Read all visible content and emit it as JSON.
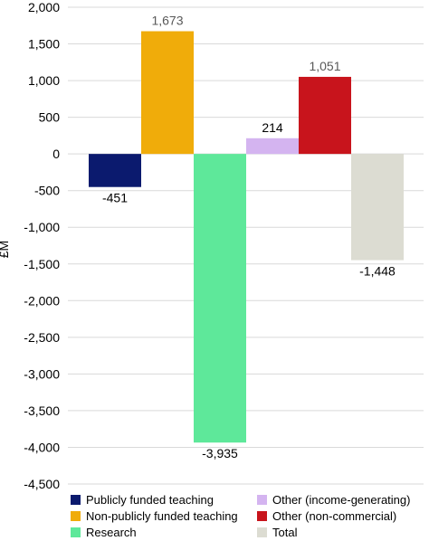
{
  "chart_data": {
    "type": "bar",
    "ylabel": "£M",
    "ylim": [
      -4500,
      2000
    ],
    "yticks": [
      2000,
      1500,
      1000,
      500,
      0,
      -500,
      -1000,
      -1500,
      -2000,
      -2500,
      -3000,
      -3500,
      -4000,
      -4500
    ],
    "ytick_labels": [
      "2,000",
      "1,500",
      "1,000",
      "500",
      "0",
      "-500",
      "-1,000",
      "-1,500",
      "-2,000",
      "-2,500",
      "-3,000",
      "-3,500",
      "-4,000",
      "-4,500"
    ],
    "grid": true,
    "legend_position": "bottom",
    "categories": [
      "Publicly funded teaching",
      "Non-publicly funded teaching",
      "Research",
      "Other (income-generating)",
      "Other (non-commercial)",
      "Total"
    ],
    "values": [
      -451,
      1673,
      -3935,
      214,
      1051,
      -1448
    ],
    "value_labels": [
      "-451",
      "1,673",
      "-3,935",
      "214",
      "1,051",
      "-1,448"
    ],
    "colors": [
      "#0b1a6e",
      "#f0ac0a",
      "#5ee89a",
      "#d4b4f0",
      "#c8141c",
      "#dcdcd2"
    ],
    "label_colors": [
      "#000000",
      "#595959",
      "#000000",
      "#000000",
      "#595959",
      "#000000"
    ]
  }
}
